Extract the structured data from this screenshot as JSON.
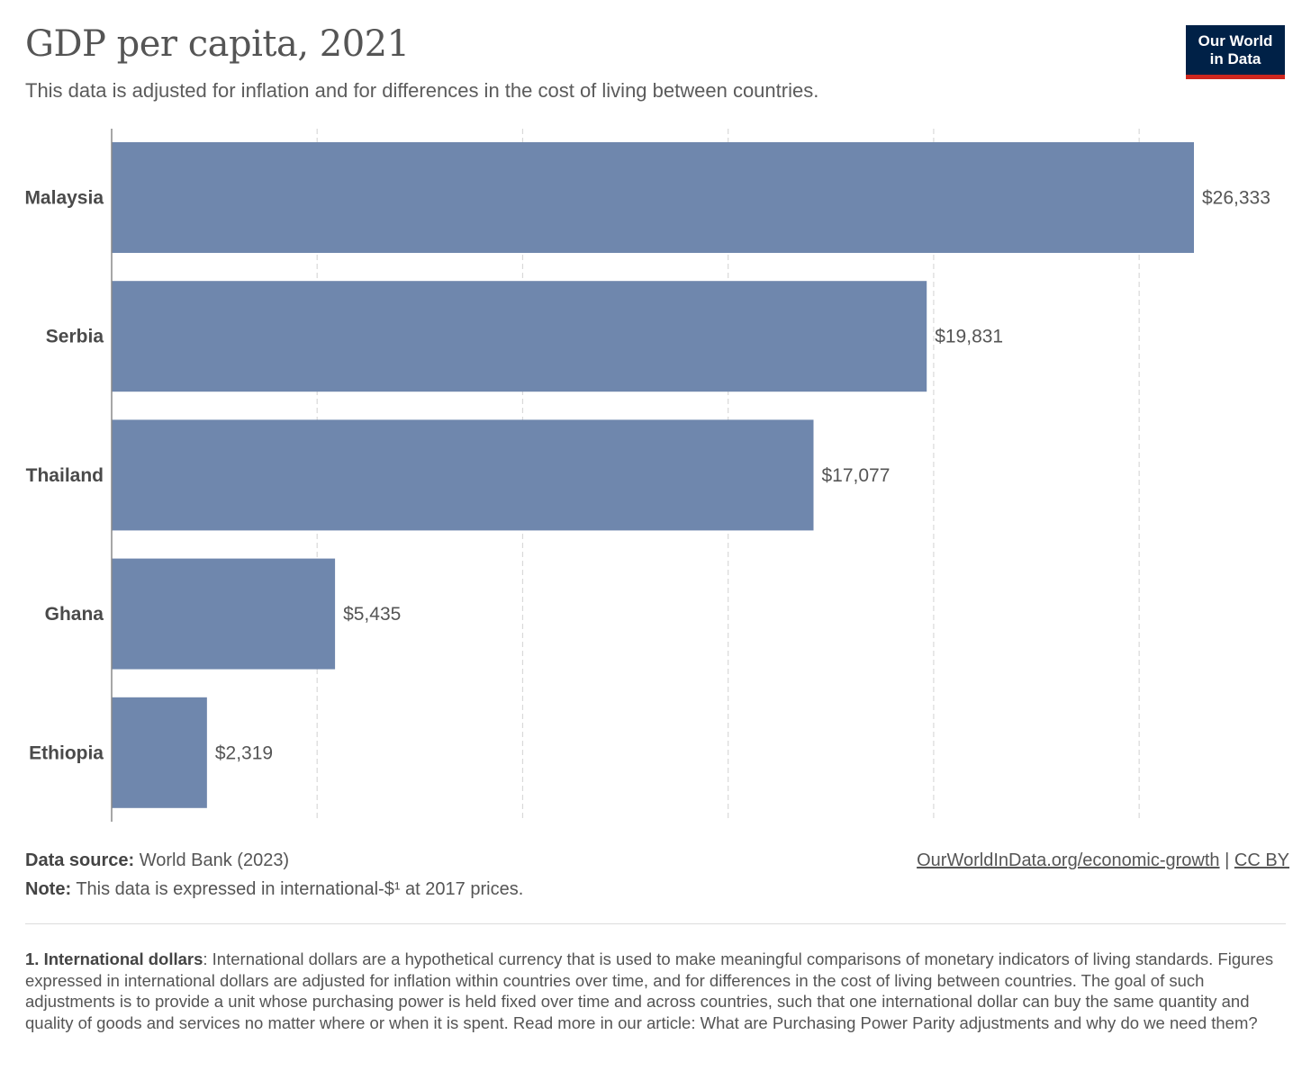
{
  "header": {
    "title": "GDP per capita, 2021",
    "subtitle": "This data is adjusted for inflation and for differences in the cost of living between countries."
  },
  "logo": {
    "line1": "Our World",
    "line2": "in Data"
  },
  "colors": {
    "bar": "#6f87ad",
    "logo_bg": "#002147",
    "logo_accent": "#ce261e",
    "grid": "#d9d9d9"
  },
  "chart_data": {
    "type": "bar",
    "orientation": "horizontal",
    "categories": [
      "Malaysia",
      "Serbia",
      "Thailand",
      "Ghana",
      "Ethiopia"
    ],
    "values": [
      26333,
      19831,
      17077,
      5435,
      2319
    ],
    "value_labels": [
      "$26,333",
      "$19,831",
      "$17,077",
      "$5,435",
      "$2,319"
    ],
    "xlim": [
      0,
      28000
    ],
    "gridlines_at": [
      5000,
      10000,
      15000,
      20000,
      25000
    ],
    "grid": true
  },
  "footer": {
    "source_label": "Data source:",
    "source_text": "World Bank (2023)",
    "note_label": "Note:",
    "note_text": "This data is expressed in international-$¹ at 2017 prices.",
    "url_text": "OurWorldInData.org/economic-growth",
    "separator": "|",
    "license_text": "CC BY"
  },
  "footnote": {
    "label": "1. International dollars",
    "text": ": International dollars are a hypothetical currency that is used to make meaningful comparisons of monetary indicators of living standards. Figures expressed in international dollars are adjusted for inflation within countries over time, and for differences in the cost of living between countries. The goal of such adjustments is to provide a unit whose purchasing power is held fixed over time and across countries, such that one international dollar can buy the same quantity and quality of goods and services no matter where or when it is spent. Read more in our article: What are Purchasing Power Parity adjustments and why do we need them?"
  }
}
